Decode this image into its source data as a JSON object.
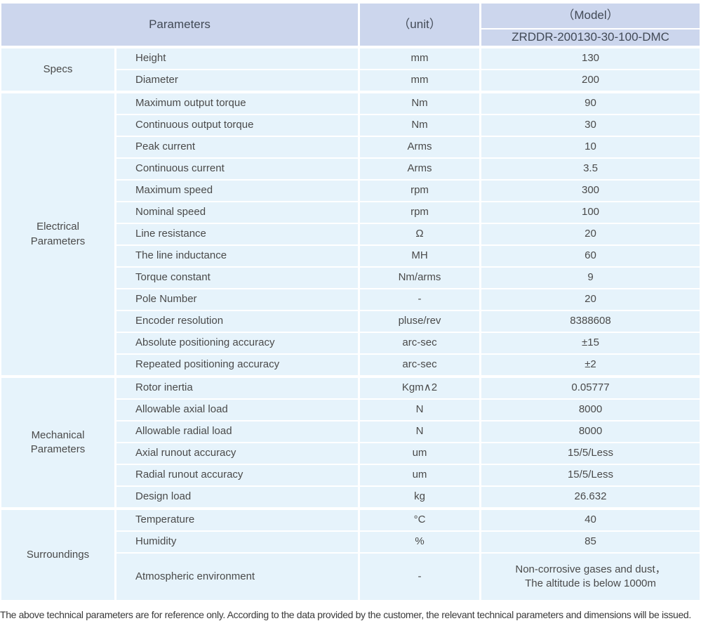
{
  "colors": {
    "header_bg": "#ccd6ed",
    "row_bg": "#e6f3fb",
    "separator": "#ffffff",
    "text": "#4a4a4a"
  },
  "header": {
    "parameters_label": "Parameters",
    "unit_label": "（unit）",
    "model_label": "（Model）",
    "model_number": "ZRDDR-200130-30-100-DMC"
  },
  "table": {
    "groups": [
      {
        "name": "Specs",
        "rows": [
          {
            "param": "Height",
            "unit": "mm",
            "value": "130"
          },
          {
            "param": "Diameter",
            "unit": "mm",
            "value": "200"
          }
        ]
      },
      {
        "name": "Electrical Parameters",
        "rows": [
          {
            "param": "Maximum output torque",
            "unit": "Nm",
            "value": "90"
          },
          {
            "param": "Continuous output torque",
            "unit": "Nm",
            "value": "30"
          },
          {
            "param": "Peak current",
            "unit": "Arms",
            "value": "10"
          },
          {
            "param": "Continuous current",
            "unit": "Arms",
            "value": "3.5"
          },
          {
            "param": "Maximum speed",
            "unit": "rpm",
            "value": "300"
          },
          {
            "param": "Nominal speed",
            "unit": "rpm",
            "value": "100"
          },
          {
            "param": "Line resistance",
            "unit": "Ω",
            "value": "20"
          },
          {
            "param": "The line inductance",
            "unit": "MH",
            "value": "60"
          },
          {
            "param": "Torque constant",
            "unit": "Nm/arms",
            "value": "9"
          },
          {
            "param": "Pole Number",
            "unit": "-",
            "value": "20"
          },
          {
            "param": "Encoder resolution",
            "unit": "pluse/rev",
            "value": "8388608"
          },
          {
            "param": "Absolute positioning accuracy",
            "unit": "arc-sec",
            "value": "±15"
          },
          {
            "param": "Repeated positioning accuracy",
            "unit": "arc-sec",
            "value": "±2"
          }
        ]
      },
      {
        "name": "Mechanical Parameters",
        "rows": [
          {
            "param": "Rotor inertia",
            "unit": "Kgm∧2",
            "value": "0.05777"
          },
          {
            "param": "Allowable axial load",
            "unit": "N",
            "value": "8000"
          },
          {
            "param": "Allowable radial load",
            "unit": "N",
            "value": "8000"
          },
          {
            "param": "Axial runout accuracy",
            "unit": "um",
            "value": "15/5/Less"
          },
          {
            "param": "Radial runout accuracy",
            "unit": "um",
            "value": "15/5/Less"
          },
          {
            "param": "Design load",
            "unit": "kg",
            "value": "26.632"
          }
        ]
      },
      {
        "name": "Surroundings",
        "rows": [
          {
            "param": "Temperature",
            "unit": "°C",
            "value": "40"
          },
          {
            "param": "Humidity",
            "unit": "%",
            "value": "85"
          },
          {
            "param": "Atmospheric environment",
            "unit": "-",
            "value": "Non-corrosive gases and dust，\nThe altitude is below 1000m",
            "tall": true
          }
        ]
      }
    ]
  },
  "footer": {
    "note": "The above technical parameters are for reference only. According to the data provided by the customer, the relevant technical parameters and dimensions will be issued."
  }
}
